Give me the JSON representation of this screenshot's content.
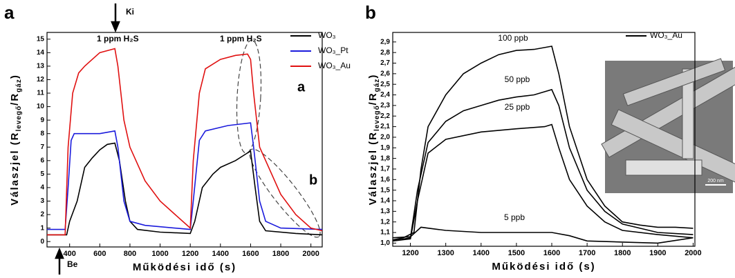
{
  "chart_data": [
    {
      "type": "line",
      "panel": "a",
      "xlabel": "Működési idő (s)",
      "ylabel_parts": [
        "Válaszjel (R",
        "levegő",
        "/R",
        "gáz",
        ")"
      ],
      "xlim": [
        250,
        2075
      ],
      "ylim": [
        -0.4,
        15.5
      ],
      "xticks": [
        400,
        600,
        800,
        1000,
        1200,
        1400,
        1600,
        1800,
        2000
      ],
      "yticks": [
        0,
        1,
        2,
        3,
        4,
        5,
        6,
        7,
        8,
        9,
        10,
        11,
        12,
        13,
        14,
        15
      ],
      "annotations": [
        "1 ppm H₂S",
        "1 ppm H₂S",
        "Ki",
        "Be",
        "a",
        "b"
      ],
      "series": [
        {
          "name": "WO₃",
          "color": "#000000",
          "x": [
            250,
            380,
            400,
            450,
            500,
            550,
            600,
            650,
            700,
            730,
            770,
            800,
            850,
            1000,
            1200,
            1230,
            1280,
            1350,
            1400,
            1500,
            1570,
            1600,
            1630,
            1660,
            1700,
            1900,
            2075
          ],
          "values": [
            0.5,
            0.5,
            1.5,
            3,
            5.5,
            6.2,
            6.8,
            7.2,
            7.3,
            6,
            3,
            1.5,
            0.9,
            0.7,
            0.6,
            1.5,
            4,
            5,
            5.5,
            6,
            6.5,
            6.7,
            4,
            1.5,
            0.8,
            0.6,
            0.5
          ]
        },
        {
          "name": "WO₃_Pt",
          "color": "#1a1adc",
          "x": [
            250,
            370,
            390,
            410,
            430,
            600,
            700,
            720,
            760,
            800,
            900,
            1200,
            1220,
            1260,
            1300,
            1450,
            1600,
            1620,
            1660,
            1700,
            1800,
            2075
          ],
          "values": [
            0.9,
            0.9,
            4,
            7.5,
            8,
            8,
            8.2,
            7,
            3,
            1.5,
            1.2,
            0.9,
            3,
            7.5,
            8.2,
            8.6,
            8.8,
            7,
            3,
            1.5,
            1,
            0.9
          ]
        },
        {
          "name": "WO₃_Au",
          "color": "#e01010",
          "x": [
            250,
            370,
            390,
            420,
            460,
            500,
            600,
            700,
            720,
            760,
            800,
            900,
            1000,
            1100,
            1200,
            1220,
            1260,
            1300,
            1400,
            1500,
            1580,
            1600,
            1620,
            1660,
            1700,
            1800,
            1900,
            2000,
            2075
          ],
          "values": [
            0.5,
            0.5,
            7,
            11,
            12.5,
            13,
            14,
            14.3,
            13,
            9,
            7,
            4.5,
            3,
            2,
            1,
            6,
            11,
            12.8,
            13.5,
            13.8,
            13.9,
            13.5,
            11,
            7,
            6,
            3.5,
            2,
            1,
            0.8
          ]
        }
      ]
    },
    {
      "type": "line",
      "panel": "b",
      "xlabel": "Működési idő (s)",
      "ylabel_parts": [
        "Válaszjel (R",
        "levegő",
        "/R",
        "gáz",
        ")"
      ],
      "legend_label": "WO₃_Au",
      "inset_label": "200 nm",
      "xlim": [
        1150,
        2005
      ],
      "ylim": [
        0.97,
        2.99
      ],
      "xticks": [
        1200,
        1300,
        1400,
        1500,
        1600,
        1700,
        1800,
        1900,
        2000
      ],
      "yticks": [
        {
          "value": 1.0,
          "label": "1,0"
        },
        {
          "value": 1.1,
          "label": "1,1"
        },
        {
          "value": 1.2,
          "label": "1,2"
        },
        {
          "value": 1.3,
          "label": "1,3"
        },
        {
          "value": 1.4,
          "label": "1,4"
        },
        {
          "value": 1.5,
          "label": "1,5"
        },
        {
          "value": 1.6,
          "label": "1,6"
        },
        {
          "value": 1.7,
          "label": "1,7"
        },
        {
          "value": 1.8,
          "label": "1,8"
        },
        {
          "value": 1.9,
          "label": "1,9"
        },
        {
          "value": 2.0,
          "label": "2,0"
        },
        {
          "value": 2.1,
          "label": "2,1"
        },
        {
          "value": 2.2,
          "label": "2,2"
        },
        {
          "value": 2.3,
          "label": "2,3"
        },
        {
          "value": 2.4,
          "label": "2,4"
        },
        {
          "value": 2.5,
          "label": "2,5"
        },
        {
          "value": 2.6,
          "label": "2,6"
        },
        {
          "value": 2.7,
          "label": "2,7"
        },
        {
          "value": 2.8,
          "label": "2,8"
        },
        {
          "value": 2.9,
          "label": "2,9"
        }
      ],
      "series": [
        {
          "name": "100 ppb",
          "color": "#000000",
          "x": [
            1150,
            1180,
            1210,
            1230,
            1250,
            1300,
            1350,
            1400,
            1450,
            1500,
            1550,
            1600,
            1620,
            1650,
            1700,
            1750,
            1800,
            1850,
            1900,
            1950,
            2000
          ],
          "values": [
            1.03,
            1.05,
            1.1,
            1.7,
            2.1,
            2.4,
            2.6,
            2.7,
            2.78,
            2.82,
            2.83,
            2.86,
            2.6,
            2.1,
            1.6,
            1.35,
            1.2,
            1.17,
            1.15,
            1.15,
            1.14
          ]
        },
        {
          "name": "50 ppb",
          "color": "#000000",
          "x": [
            1150,
            1200,
            1220,
            1250,
            1300,
            1350,
            1400,
            1450,
            1500,
            1550,
            1600,
            1620,
            1650,
            1700,
            1750,
            1800,
            1900,
            2000
          ],
          "values": [
            1.02,
            1.05,
            1.5,
            1.95,
            2.15,
            2.25,
            2.3,
            2.35,
            2.38,
            2.4,
            2.45,
            2.3,
            1.9,
            1.5,
            1.3,
            1.18,
            1.1,
            1.08
          ]
        },
        {
          "name": "25 ppb",
          "color": "#000000",
          "x": [
            1150,
            1200,
            1220,
            1250,
            1300,
            1400,
            1500,
            1580,
            1600,
            1620,
            1650,
            1700,
            1750,
            1800,
            1900,
            2000
          ],
          "values": [
            1.02,
            1.04,
            1.4,
            1.85,
            1.98,
            2.05,
            2.08,
            2.1,
            2.12,
            1.9,
            1.6,
            1.35,
            1.2,
            1.12,
            1.08,
            1.05
          ]
        },
        {
          "name": "5 ppb",
          "color": "#000000",
          "x": [
            1150,
            1200,
            1230,
            1300,
            1400,
            1500,
            1600,
            1650,
            1700,
            1800,
            1900,
            2000
          ],
          "values": [
            1.05,
            1.06,
            1.15,
            1.12,
            1.1,
            1.1,
            1.1,
            1.07,
            1.02,
            1.01,
            1.0,
            1.05
          ]
        }
      ]
    }
  ]
}
